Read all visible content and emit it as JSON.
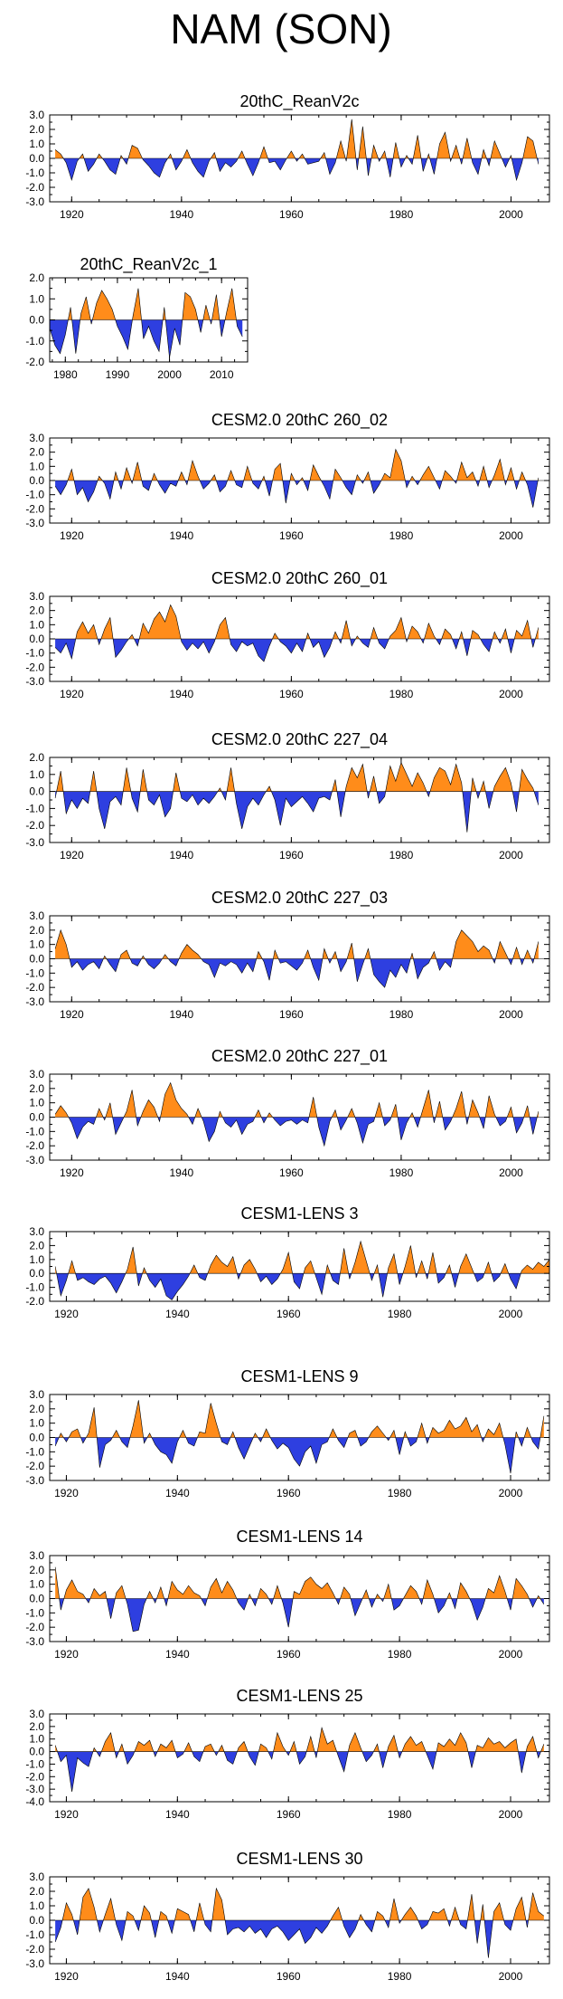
{
  "title": "NAM (SON)",
  "colors": {
    "positive": "#ff8c1a",
    "negative": "#2e3fe0",
    "axis": "#000000"
  },
  "chart_data": [
    {
      "type": "area",
      "title": "20thC_ReanV2c",
      "x_range": [
        1916,
        2007
      ],
      "ylim": [
        -3,
        3
      ],
      "yticks": [
        "3.0",
        "2.0",
        "1.0",
        "0.0",
        "-1.0",
        "-2.0",
        "-3.0"
      ],
      "xticks": [
        "1920",
        "1940",
        "1960",
        "1980",
        "2000"
      ],
      "start_year": 1917,
      "values": [
        0.6,
        0.3,
        -0.3,
        -1.5,
        -0.2,
        0.3,
        -0.9,
        -0.4,
        0.3,
        -0.2,
        -0.8,
        -1.1,
        0.2,
        -0.4,
        0.9,
        0.7,
        -0.1,
        -0.5,
        -1.0,
        -1.3,
        -0.3,
        0.3,
        -0.8,
        -0.2,
        0.6,
        -0.3,
        -0.9,
        -1.3,
        -0.2,
        0.4,
        -0.9,
        -0.3,
        -0.6,
        -0.2,
        0.5,
        -0.4,
        -1.2,
        -0.3,
        0.8,
        -0.3,
        -0.2,
        -0.8,
        -0.1,
        0.5,
        -0.2,
        0.3,
        -0.4,
        -0.3,
        -0.2,
        0.4,
        -1.1,
        -0.3,
        1.2,
        -0.2,
        2.7,
        -0.8,
        2.2,
        -1.2,
        0.9,
        -0.2,
        0.5,
        -1.3,
        1.1,
        -0.6,
        0.2,
        -0.4,
        1.6,
        -0.9,
        0.3,
        -1.1,
        1.0,
        1.8,
        -0.2,
        0.9,
        -0.4,
        1.4,
        -0.3,
        -1.1,
        0.6,
        -0.5,
        1.2,
        0.3,
        -0.6,
        0.2,
        -1.5,
        -0.3,
        1.5,
        1.2,
        -0.4
      ]
    },
    {
      "type": "area",
      "title": "20thC_ReanV2c_1",
      "x_range": [
        1977,
        2015
      ],
      "ylim": [
        -2,
        2
      ],
      "yticks": [
        "2.0",
        "1.0",
        "0.0",
        "-1.0",
        "-2.0"
      ],
      "xticks": [
        "1980",
        "1990",
        "2000",
        "2010"
      ],
      "start_year": 1977,
      "values": [
        -0.4,
        -1.2,
        -1.6,
        -0.7,
        0.6,
        -1.6,
        0.3,
        1.1,
        -0.2,
        0.8,
        1.4,
        1.0,
        0.5,
        -0.3,
        -0.8,
        -1.4,
        0.2,
        1.5,
        -0.9,
        -0.3,
        -1.0,
        -1.5,
        0.6,
        -1.8,
        -0.4,
        -1.2,
        1.3,
        1.1,
        0.5,
        -0.6,
        0.7,
        -0.2,
        1.2,
        -0.8,
        0.4,
        1.5,
        -0.3,
        -0.8
      ]
    },
    {
      "type": "area",
      "title": "CESM2.0 20thC 260_02",
      "x_range": [
        1916,
        2007
      ],
      "ylim": [
        -3,
        3
      ],
      "yticks": [
        "3.0",
        "2.0",
        "1.0",
        "0.0",
        "-1.0",
        "-2.0",
        "-3.0"
      ],
      "xticks": [
        "1920",
        "1940",
        "1960",
        "1980",
        "2000"
      ],
      "start_year": 1917,
      "values": [
        -0.4,
        -1.0,
        -0.3,
        0.8,
        -1.0,
        -0.5,
        -1.5,
        -0.8,
        0.3,
        -0.2,
        -1.3,
        0.6,
        -0.6,
        0.9,
        -0.2,
        1.3,
        -0.4,
        -0.7,
        0.5,
        -0.3,
        -0.9,
        -0.2,
        -0.4,
        0.6,
        -0.3,
        1.4,
        0.3,
        -0.6,
        -0.2,
        0.4,
        -0.8,
        -0.4,
        0.7,
        -0.3,
        -0.5,
        1.0,
        -0.2,
        -0.6,
        0.3,
        -1.1,
        0.8,
        1.2,
        -1.6,
        0.5,
        -0.3,
        0.2,
        -0.7,
        1.1,
        0.3,
        -0.4,
        -1.3,
        0.8,
        0.2,
        -0.5,
        -1.0,
        0.4,
        -0.2,
        0.6,
        -0.9,
        -0.3,
        0.5,
        0.2,
        2.2,
        1.4,
        -0.5,
        0.3,
        -0.3,
        0.4,
        1.0,
        0.2,
        -0.6,
        0.7,
        0.3,
        -0.2,
        1.3,
        0.2,
        0.6,
        -0.4,
        1.0,
        -0.5,
        0.4,
        1.5,
        -0.3,
        0.9,
        -0.6,
        0.6,
        -0.3,
        -1.9,
        0.2
      ]
    },
    {
      "type": "area",
      "title": "CESM2.0 20thC 260_01",
      "x_range": [
        1916,
        2007
      ],
      "ylim": [
        -3,
        3
      ],
      "yticks": [
        "3.0",
        "2.0",
        "1.0",
        "0.0",
        "-1.0",
        "-2.0",
        "-3.0"
      ],
      "xticks": [
        "1920",
        "1940",
        "1960",
        "1980",
        "2000"
      ],
      "start_year": 1917,
      "values": [
        -0.6,
        -1.0,
        -0.3,
        -1.4,
        0.5,
        1.2,
        0.4,
        1.0,
        -0.4,
        0.7,
        1.5,
        -1.3,
        -0.8,
        -0.2,
        0.3,
        -0.5,
        1.1,
        0.4,
        1.4,
        1.9,
        1.2,
        2.4,
        1.6,
        -0.2,
        -0.8,
        -0.3,
        -0.7,
        -0.2,
        -1.0,
        -0.2,
        1.0,
        1.5,
        -0.4,
        -0.9,
        -0.2,
        -0.5,
        -0.3,
        -1.2,
        -1.6,
        -0.5,
        0.4,
        -0.2,
        -0.5,
        -1.0,
        -0.3,
        -0.9,
        0.4,
        -0.6,
        -0.2,
        -1.3,
        -0.6,
        0.5,
        -0.3,
        1.3,
        -0.5,
        0.2,
        -0.3,
        -0.6,
        0.8,
        -0.3,
        -0.7,
        0.2,
        0.6,
        1.5,
        -0.2,
        0.9,
        0.5,
        -0.3,
        1.1,
        0.2,
        -0.4,
        0.7,
        0.3,
        -0.7,
        0.5,
        -1.2,
        0.6,
        0.3,
        -0.4,
        -0.9,
        0.5,
        -0.3,
        0.7,
        -1.0,
        0.6,
        0.2,
        1.3,
        -0.6,
        0.8
      ]
    },
    {
      "type": "area",
      "title": "CESM2.0 20thC 227_04",
      "x_range": [
        1916,
        2007
      ],
      "ylim": [
        -3,
        2
      ],
      "yticks": [
        "2.0",
        "1.0",
        "0.0",
        "-1.0",
        "-2.0",
        "-3.0"
      ],
      "xticks": [
        "1920",
        "1940",
        "1960",
        "1980",
        "2000"
      ],
      "start_year": 1917,
      "values": [
        -0.4,
        1.2,
        -1.3,
        -0.5,
        -1.0,
        -0.4,
        -0.7,
        1.2,
        -1.0,
        -2.2,
        -0.6,
        -0.3,
        -0.8,
        1.4,
        -0.4,
        -1.2,
        1.3,
        -0.5,
        -0.8,
        -0.2,
        -1.5,
        -1.0,
        1.1,
        -0.4,
        -0.6,
        -0.2,
        -0.8,
        -0.4,
        -0.7,
        -0.3,
        0.2,
        -0.5,
        1.4,
        -0.7,
        -2.2,
        -0.9,
        -0.4,
        -0.8,
        -0.2,
        0.3,
        -0.5,
        -2.0,
        -0.4,
        -0.9,
        -0.6,
        -0.3,
        -0.7,
        -1.2,
        -0.4,
        -0.3,
        -0.5,
        0.7,
        -1.5,
        0.3,
        1.4,
        0.8,
        1.6,
        -0.4,
        0.9,
        -0.7,
        -0.3,
        1.5,
        0.6,
        1.7,
        1.0,
        0.3,
        1.1,
        0.5,
        -0.3,
        0.8,
        1.4,
        1.2,
        0.4,
        1.6,
        0.5,
        -2.4,
        0.8,
        -0.4,
        0.6,
        -1.0,
        0.3,
        0.9,
        1.4,
        0.5,
        -1.2,
        1.3,
        0.7,
        0.2,
        -0.8
      ]
    },
    {
      "type": "area",
      "title": "CESM2.0 20thC 227_03",
      "x_range": [
        1916,
        2007
      ],
      "ylim": [
        -3,
        3
      ],
      "yticks": [
        "3.0",
        "2.0",
        "1.0",
        "0.0",
        "-1.0",
        "-2.0",
        "-3.0"
      ],
      "xticks": [
        "1920",
        "1940",
        "1960",
        "1980",
        "2000"
      ],
      "start_year": 1917,
      "values": [
        0.7,
        2.0,
        1.0,
        -0.6,
        -0.2,
        -0.8,
        -0.4,
        -0.2,
        -0.7,
        0.2,
        -0.4,
        -0.9,
        0.3,
        0.6,
        -0.3,
        -0.5,
        0.2,
        -0.4,
        -0.7,
        -0.3,
        0.3,
        -0.2,
        -0.5,
        0.4,
        1.0,
        0.6,
        0.3,
        -0.2,
        -0.4,
        -1.3,
        -0.3,
        -0.5,
        -0.2,
        -0.4,
        -1.0,
        -0.3,
        -0.9,
        0.5,
        -0.2,
        -1.5,
        0.6,
        -0.3,
        -0.2,
        -0.5,
        -0.8,
        -0.3,
        0.6,
        -0.6,
        -1.5,
        0.7,
        -0.3,
        0.5,
        -0.9,
        -0.2,
        1.1,
        -1.6,
        -0.4,
        0.7,
        -1.1,
        -1.6,
        -2.0,
        -0.8,
        -1.3,
        -0.4,
        -1.0,
        0.4,
        -1.4,
        -0.6,
        -0.3,
        0.5,
        -0.8,
        -0.2,
        -0.6,
        1.2,
        2.0,
        1.6,
        1.2,
        0.5,
        0.9,
        0.6,
        -0.3,
        1.2,
        0.4,
        -0.4,
        0.8,
        -0.4,
        0.6,
        -0.3,
        1.2
      ]
    },
    {
      "type": "area",
      "title": "CESM2.0 20thC 227_01",
      "x_range": [
        1916,
        2007
      ],
      "ylim": [
        -3,
        3
      ],
      "yticks": [
        "3.0",
        "2.0",
        "1.0",
        "0.0",
        "-1.0",
        "-2.0",
        "-3.0"
      ],
      "xticks": [
        "1920",
        "1940",
        "1960",
        "1980",
        "2000"
      ],
      "start_year": 1917,
      "values": [
        0.2,
        0.8,
        0.3,
        -0.4,
        -1.5,
        -0.7,
        -0.3,
        -0.5,
        0.6,
        -0.2,
        1.0,
        -1.2,
        -0.4,
        0.4,
        1.9,
        -0.6,
        0.4,
        1.2,
        0.7,
        -0.3,
        1.6,
        2.4,
        1.2,
        0.6,
        0.2,
        -0.5,
        0.6,
        -0.3,
        -1.7,
        -1.0,
        0.4,
        -0.4,
        -0.7,
        -0.2,
        -1.2,
        -0.5,
        -0.3,
        0.5,
        -0.4,
        0.3,
        -0.2,
        -0.6,
        -0.3,
        -0.2,
        -0.5,
        -0.2,
        -0.4,
        1.4,
        -0.7,
        -2.0,
        -0.3,
        0.5,
        -0.9,
        -0.2,
        0.6,
        -0.4,
        -1.8,
        -0.5,
        -0.3,
        1.0,
        -0.6,
        -0.2,
        0.9,
        -1.6,
        -0.4,
        0.3,
        -0.7,
        0.6,
        1.9,
        -0.4,
        1.1,
        -0.9,
        -0.3,
        0.6,
        1.8,
        -0.5,
        1.2,
        0.3,
        -0.8,
        1.5,
        0.2,
        -0.6,
        -0.3,
        0.7,
        -1.1,
        -0.4,
        0.8,
        -1.2,
        0.4
      ]
    },
    {
      "type": "area",
      "title": "CESM1-LENS 3",
      "x_range": [
        1917,
        2007
      ],
      "ylim": [
        -2,
        3
      ],
      "yticks": [
        "3.0",
        "2.0",
        "1.0",
        "0.0",
        "-1.0",
        "-2.0"
      ],
      "xticks": [
        "1920",
        "1940",
        "1960",
        "1980",
        "2000"
      ],
      "start_year": 1918,
      "values": [
        0.5,
        -1.6,
        -0.5,
        0.9,
        -0.5,
        -0.3,
        -0.6,
        -0.8,
        -0.4,
        -0.2,
        -0.7,
        -1.4,
        -0.6,
        0.3,
        1.9,
        -0.9,
        0.4,
        -0.5,
        -1.0,
        -0.4,
        -1.6,
        -1.9,
        -1.3,
        -0.8,
        -0.2,
        0.6,
        -0.3,
        -0.5,
        0.6,
        1.3,
        0.8,
        0.5,
        1.2,
        -0.4,
        0.6,
        1.0,
        0.3,
        -0.6,
        -0.2,
        -0.8,
        -0.4,
        0.3,
        1.5,
        -0.6,
        -1.1,
        0.4,
        0.9,
        -0.3,
        -1.5,
        0.6,
        -0.5,
        -0.8,
        1.8,
        -0.4,
        0.8,
        2.3,
        0.9,
        -0.5,
        0.6,
        -1.7,
        0.4,
        1.4,
        -0.8,
        0.5,
        2.0,
        -0.3,
        0.9,
        -0.4,
        1.5,
        -0.7,
        -0.3,
        0.6,
        -1.0,
        0.5,
        1.4,
        0.4,
        -0.6,
        -0.3,
        0.8,
        -0.6,
        -0.2,
        0.7,
        -0.4,
        -1.1,
        0.2,
        0.6,
        0.3,
        0.8,
        0.5,
        1.0
      ]
    },
    {
      "type": "area",
      "title": "CESM1-LENS 9",
      "x_range": [
        1917,
        2007
      ],
      "ylim": [
        -3,
        3
      ],
      "yticks": [
        "3.0",
        "2.0",
        "1.0",
        "0.0",
        "-1.0",
        "-2.0",
        "-3.0"
      ],
      "xticks": [
        "1920",
        "1940",
        "1960",
        "1980",
        "2000"
      ],
      "start_year": 1918,
      "values": [
        -0.6,
        0.3,
        -0.3,
        0.4,
        0.6,
        -0.4,
        0.3,
        2.1,
        -2.1,
        -0.5,
        -0.2,
        0.5,
        -0.3,
        -0.7,
        0.8,
        2.6,
        -0.4,
        0.3,
        -0.5,
        -1.0,
        -1.2,
        -1.8,
        -0.3,
        0.5,
        -0.4,
        -0.6,
        0.4,
        0.3,
        2.4,
        1.0,
        -0.3,
        -0.5,
        0.4,
        -0.7,
        -1.5,
        -0.6,
        0.3,
        -0.3,
        0.6,
        -0.2,
        -0.8,
        -0.4,
        -0.7,
        -1.5,
        -2.0,
        -1.0,
        -0.6,
        -1.8,
        -0.5,
        -0.3,
        0.6,
        -0.2,
        -0.7,
        0.3,
        0.5,
        -0.6,
        -0.3,
        0.4,
        0.8,
        0.3,
        -0.2,
        0.5,
        -1.2,
        0.4,
        -0.6,
        -0.3,
        1.0,
        -0.4,
        0.7,
        0.3,
        0.5,
        1.2,
        0.6,
        0.8,
        1.4,
        0.4,
        0.9,
        -0.3,
        0.6,
        0.2,
        1.0,
        -0.5,
        -2.5,
        0.4,
        -0.6,
        0.7,
        -0.3,
        -0.8,
        1.5
      ]
    },
    {
      "type": "area",
      "title": "CESM1-LENS 14",
      "x_range": [
        1917,
        2007
      ],
      "ylim": [
        -3,
        3
      ],
      "yticks": [
        "3.0",
        "2.0",
        "1.0",
        "0.0",
        "-1.0",
        "-2.0",
        "-3.0"
      ],
      "xticks": [
        "1920",
        "1940",
        "1960",
        "1980",
        "2000"
      ],
      "start_year": 1918,
      "values": [
        2.2,
        -0.8,
        0.6,
        1.3,
        0.5,
        0.3,
        -0.3,
        0.7,
        0.2,
        0.5,
        -1.4,
        0.4,
        0.9,
        -0.4,
        -2.3,
        -2.2,
        -0.4,
        0.5,
        -0.3,
        0.8,
        -0.5,
        1.2,
        0.6,
        0.3,
        0.9,
        0.4,
        0.2,
        -0.5,
        0.8,
        1.4,
        0.4,
        1.2,
        0.6,
        -0.3,
        -0.8,
        0.3,
        -0.5,
        0.7,
        0.3,
        -0.4,
        0.9,
        -0.3,
        -2.0,
        0.5,
        0.3,
        1.2,
        1.5,
        1.0,
        0.7,
        1.1,
        0.4,
        -0.4,
        0.8,
        0.3,
        -1.2,
        -0.3,
        0.6,
        -0.6,
        0.3,
        -0.2,
        1.0,
        -0.8,
        -0.5,
        0.2,
        0.9,
        0.5,
        -0.4,
        1.3,
        0.3,
        -1.0,
        -0.5,
        0.4,
        -0.7,
        1.1,
        0.5,
        -0.3,
        -1.5,
        -0.6,
        0.7,
        0.4,
        1.6,
        0.5,
        -0.8,
        1.4,
        0.9,
        0.3,
        -0.6,
        0.2,
        -0.4
      ]
    },
    {
      "type": "area",
      "title": "CESM1-LENS 25",
      "x_range": [
        1917,
        2007
      ],
      "ylim": [
        -4,
        3
      ],
      "yticks": [
        "3.0",
        "2.0",
        "1.0",
        "0.0",
        "-1.0",
        "-2.0",
        "-3.0",
        "-4.0"
      ],
      "xticks": [
        "1920",
        "1940",
        "1960",
        "1980",
        "2000"
      ],
      "start_year": 1918,
      "values": [
        0.5,
        -0.8,
        -0.3,
        -3.2,
        -0.5,
        -0.9,
        -1.2,
        0.3,
        -0.4,
        0.8,
        1.5,
        -0.5,
        0.6,
        -1.0,
        -0.3,
        0.8,
        0.5,
        0.9,
        -0.4,
        0.6,
        0.3,
        0.9,
        -0.5,
        -0.2,
        0.7,
        -0.4,
        -0.8,
        0.4,
        0.6,
        -0.3,
        0.5,
        -0.7,
        -1.0,
        0.3,
        0.8,
        -0.4,
        -1.1,
        0.6,
        0.3,
        -0.6,
        1.5,
        0.4,
        -0.3,
        0.8,
        -1.0,
        -0.4,
        1.2,
        -0.5,
        1.9,
        0.6,
        0.9,
        -0.4,
        -1.6,
        0.5,
        1.5,
        0.3,
        -0.8,
        -0.3,
        0.6,
        -1.3,
        0.4,
        1.3,
        -0.5,
        0.6,
        1.2,
        0.5,
        0.8,
        -0.3,
        -1.4,
        0.7,
        0.4,
        1.0,
        0.5,
        1.5,
        0.7,
        -1.3,
        0.5,
        0.3,
        1.1,
        0.6,
        0.8,
        0.3,
        0.7,
        1.0,
        -1.7,
        0.4,
        1.2,
        -0.5,
        0.6
      ]
    },
    {
      "type": "area",
      "title": "CESM1-LENS 30",
      "x_range": [
        1917,
        2007
      ],
      "ylim": [
        -3,
        3
      ],
      "yticks": [
        "3.0",
        "2.0",
        "1.0",
        "0.0",
        "-1.0",
        "-2.0",
        "-3.0"
      ],
      "xticks": [
        "1920",
        "1940",
        "1960",
        "1980",
        "2000"
      ],
      "start_year": 1918,
      "values": [
        -1.5,
        -0.5,
        1.2,
        0.4,
        -1.0,
        1.6,
        2.2,
        0.9,
        -0.8,
        0.4,
        1.5,
        -0.3,
        -1.4,
        0.6,
        0.3,
        -0.7,
        1.0,
        0.5,
        -1.2,
        0.6,
        0.3,
        -0.9,
        0.8,
        0.6,
        0.4,
        -0.8,
        1.2,
        -0.3,
        -0.8,
        2.2,
        1.4,
        -1.0,
        -0.6,
        -0.5,
        -0.8,
        -0.4,
        -0.9,
        -0.6,
        -1.2,
        -0.6,
        -0.4,
        -0.8,
        -1.4,
        -1.0,
        -0.6,
        -1.6,
        -1.2,
        -0.5,
        -0.9,
        -0.4,
        0.3,
        0.9,
        -0.4,
        -1.2,
        -0.6,
        0.4,
        -0.3,
        -0.8,
        0.6,
        0.3,
        -0.5,
        1.5,
        -0.2,
        0.4,
        0.9,
        0.3,
        -0.6,
        -0.3,
        0.6,
        0.5,
        0.8,
        -0.4,
        0.9,
        -0.3,
        -0.6,
        1.8,
        -1.6,
        1.1,
        -2.6,
        0.6,
        1.2,
        -0.3,
        -0.7,
        0.8,
        1.6,
        -0.5,
        1.9,
        0.6,
        0.3
      ]
    }
  ]
}
